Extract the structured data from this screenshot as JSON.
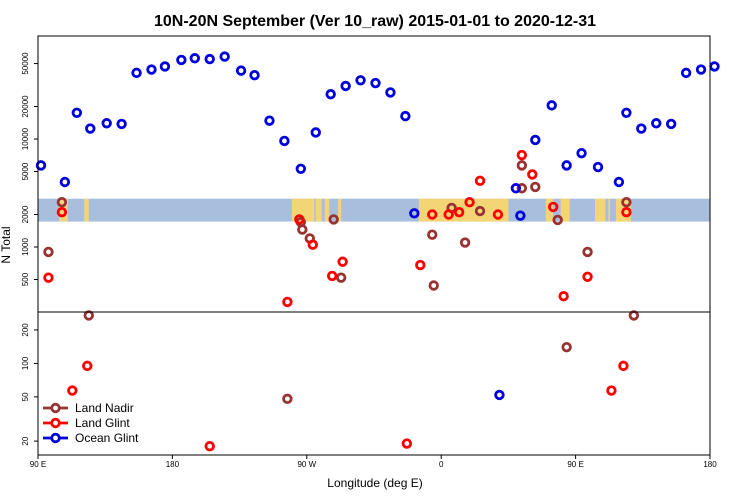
{
  "chart_data": {
    "type": "scatter",
    "title": "10N-20N September (Ver 10_raw)   2015-01-01 to 2020-12-31",
    "xlabel": "Longitude (deg E)",
    "ylabel": "N Total",
    "x_ticks": [
      {
        "value": 0,
        "label": "90 E"
      },
      {
        "value": 90,
        "label": "180"
      },
      {
        "value": 180,
        "label": "90 W"
      },
      {
        "value": 270,
        "label": "0"
      },
      {
        "value": 360,
        "label": "90 E"
      },
      {
        "value": 450,
        "label": "180"
      }
    ],
    "xlim": [
      0,
      450
    ],
    "upper_panel": {
      "scale": "log",
      "ylim": [
        250,
        90000
      ],
      "ticks": [
        {
          "value": 500,
          "label": "500"
        },
        {
          "value": 1000,
          "label": "1000"
        },
        {
          "value": 2000,
          "label": "2000"
        },
        {
          "value": 5000,
          "label": "5000"
        },
        {
          "value": 10000,
          "label": "10000"
        },
        {
          "value": 20000,
          "label": "20000"
        },
        {
          "value": 50000,
          "label": "50000"
        }
      ],
      "map_band": {
        "y_top": 2800,
        "y_bottom": 1720,
        "ocean_color": "#a7bfdd",
        "land_color": "#f4d576",
        "land_ranges": [
          [
            14,
            20
          ],
          [
            31,
            34
          ],
          [
            170,
            185
          ],
          [
            186,
            190
          ],
          [
            192,
            195
          ],
          [
            201,
            203
          ],
          [
            255,
            315
          ],
          [
            340,
            345
          ],
          [
            350,
            356
          ],
          [
            373,
            380
          ],
          [
            382,
            383
          ],
          [
            387,
            397
          ]
        ]
      }
    },
    "lower_panel": {
      "scale": "log",
      "ylim": [
        15,
        290
      ],
      "ticks": [
        {
          "value": 20,
          "label": "20"
        },
        {
          "value": 50,
          "label": "50"
        },
        {
          "value": 100,
          "label": "100"
        },
        {
          "value": 200,
          "label": "200"
        }
      ]
    },
    "series": [
      {
        "name": "Land Nadir",
        "color": "#993333",
        "points": [
          [
            7,
            900
          ],
          [
            16,
            2600
          ],
          [
            34,
            270
          ],
          [
            176,
            1700
          ],
          [
            177,
            1450
          ],
          [
            182,
            1200
          ],
          [
            198,
            1800
          ],
          [
            203,
            520
          ],
          [
            265,
            440
          ],
          [
            264,
            1300
          ],
          [
            277,
            2300
          ],
          [
            286,
            1100
          ],
          [
            296,
            2150
          ],
          [
            324,
            3500
          ],
          [
            324,
            5700
          ],
          [
            333,
            3600
          ],
          [
            348,
            1780
          ],
          [
            368,
            900
          ],
          [
            394,
            2600
          ],
          [
            399,
            270
          ],
          [
            167,
            48
          ],
          [
            354,
            140
          ]
        ]
      },
      {
        "name": "Land Glint",
        "color": "#ff0000",
        "points": [
          [
            7,
            520
          ],
          [
            16,
            2100
          ],
          [
            167,
            310
          ],
          [
            175,
            1800
          ],
          [
            184,
            1050
          ],
          [
            197,
            540
          ],
          [
            204,
            730
          ],
          [
            256,
            680
          ],
          [
            264,
            2000
          ],
          [
            275,
            2000
          ],
          [
            282,
            2100
          ],
          [
            289,
            2600
          ],
          [
            296,
            4100
          ],
          [
            308,
            2000
          ],
          [
            324,
            7100
          ],
          [
            331,
            4700
          ],
          [
            345,
            2350
          ],
          [
            352,
            350
          ],
          [
            368,
            530
          ],
          [
            394,
            2100
          ],
          [
            23,
            57
          ],
          [
            33,
            95
          ],
          [
            115,
            18
          ],
          [
            247,
            19
          ],
          [
            384,
            57
          ],
          [
            392,
            95
          ]
        ]
      },
      {
        "name": "Ocean Glint",
        "color": "#0000dd",
        "points": [
          [
            2,
            5700
          ],
          [
            18,
            4000
          ],
          [
            26,
            17500
          ],
          [
            35,
            12500
          ],
          [
            46,
            14000
          ],
          [
            56,
            13800
          ],
          [
            66,
            41000
          ],
          [
            76,
            44000
          ],
          [
            85,
            47000
          ],
          [
            96,
            54000
          ],
          [
            105,
            56000
          ],
          [
            115,
            55000
          ],
          [
            125,
            58000
          ],
          [
            136,
            43000
          ],
          [
            145,
            39000
          ],
          [
            155,
            14800
          ],
          [
            165,
            9600
          ],
          [
            176,
            5300
          ],
          [
            186,
            11500
          ],
          [
            196,
            26000
          ],
          [
            206,
            31000
          ],
          [
            216,
            35000
          ],
          [
            226,
            33000
          ],
          [
            236,
            27000
          ],
          [
            246,
            16300
          ],
          [
            252,
            2050
          ],
          [
            320,
            3500
          ],
          [
            323,
            1950
          ],
          [
            333,
            9800
          ],
          [
            344,
            20500
          ],
          [
            354,
            5700
          ],
          [
            364,
            7400
          ],
          [
            375,
            5500
          ],
          [
            389,
            4000
          ],
          [
            394,
            17500
          ],
          [
            404,
            12500
          ],
          [
            414,
            14000
          ],
          [
            424,
            13800
          ],
          [
            434,
            41000
          ],
          [
            444,
            44000
          ],
          [
            453,
            47000
          ],
          [
            309,
            52
          ]
        ]
      }
    ],
    "legend": {
      "position": "bottom-left",
      "entries": [
        "Land Nadir",
        "Land Glint",
        "Ocean Glint"
      ]
    }
  }
}
